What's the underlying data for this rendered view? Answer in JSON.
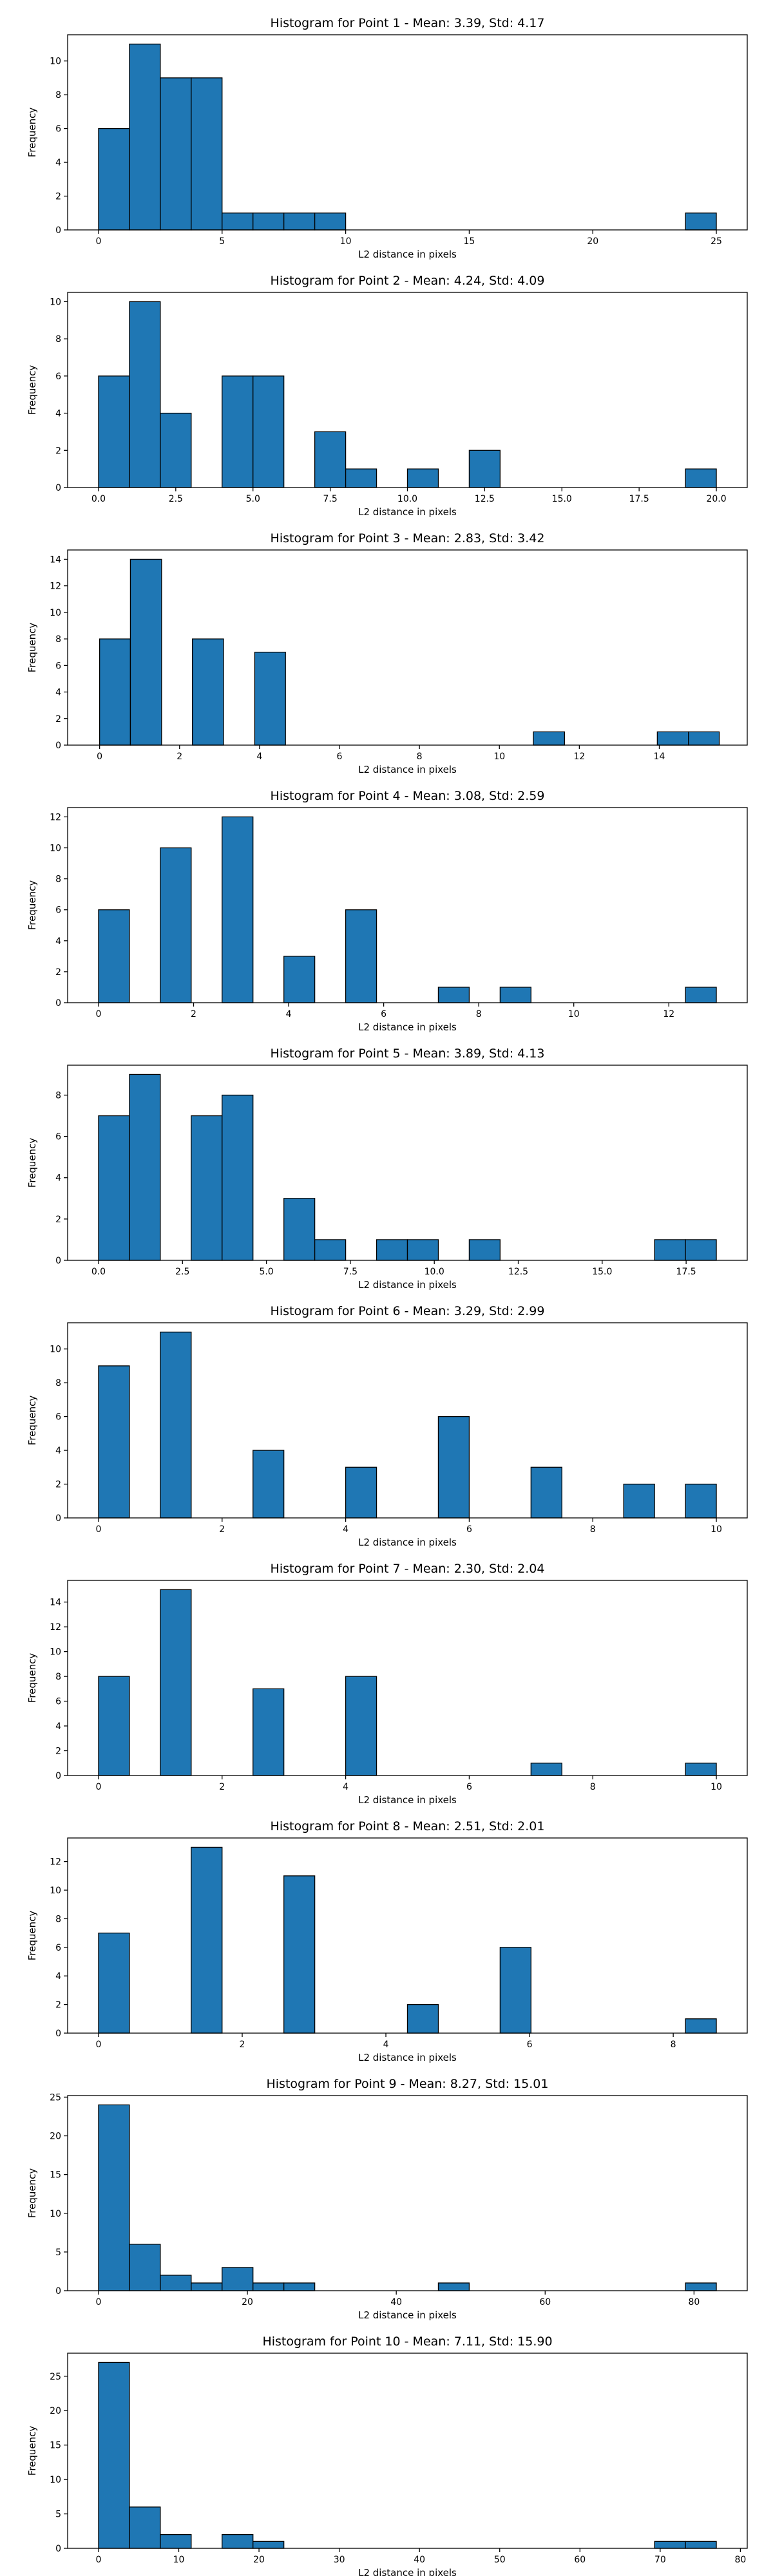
{
  "chart_data": [
    {
      "type": "bar",
      "title": "Histogram for Point 1 - Mean: 3.39, Std: 4.17",
      "xlabel": "L2 distance in pixels",
      "ylabel": "Frequency",
      "xlim": [
        -1.25,
        26.25
      ],
      "ylim": [
        0,
        11.55
      ],
      "xticks": [
        0,
        5,
        10,
        15,
        20,
        25
      ],
      "xtick_labels": [
        "0",
        "5",
        "10",
        "15",
        "20",
        "25"
      ],
      "yticks": [
        0,
        2,
        4,
        6,
        8,
        10
      ],
      "ytick_labels": [
        "0",
        "2",
        "4",
        "6",
        "8",
        "10"
      ],
      "grid": false,
      "bins": [
        {
          "x0": 0.0,
          "x1": 1.25,
          "value": 6
        },
        {
          "x0": 1.25,
          "x1": 2.5,
          "value": 11
        },
        {
          "x0": 2.5,
          "x1": 3.75,
          "value": 9
        },
        {
          "x0": 3.75,
          "x1": 5.0,
          "value": 9
        },
        {
          "x0": 5.0,
          "x1": 6.25,
          "value": 1
        },
        {
          "x0": 6.25,
          "x1": 7.5,
          "value": 1
        },
        {
          "x0": 7.5,
          "x1": 8.75,
          "value": 1
        },
        {
          "x0": 8.75,
          "x1": 10.0,
          "value": 1
        },
        {
          "x0": 23.75,
          "x1": 25.0,
          "value": 1
        }
      ]
    },
    {
      "type": "bar",
      "title": "Histogram for Point 2 - Mean: 4.24, Std: 4.09",
      "xlabel": "L2 distance in pixels",
      "ylabel": "Frequency",
      "xlim": [
        -1.0,
        21.0
      ],
      "ylim": [
        0,
        10.5
      ],
      "xticks": [
        0,
        2.5,
        5,
        7.5,
        10,
        12.5,
        15,
        17.5,
        20
      ],
      "xtick_labels": [
        "0.0",
        "2.5",
        "5.0",
        "7.5",
        "10.0",
        "12.5",
        "15.0",
        "17.5",
        "20.0"
      ],
      "yticks": [
        0,
        2,
        4,
        6,
        8,
        10
      ],
      "ytick_labels": [
        "0",
        "2",
        "4",
        "6",
        "8",
        "10"
      ],
      "grid": false,
      "bins": [
        {
          "x0": 0.0,
          "x1": 1.0,
          "value": 6
        },
        {
          "x0": 1.0,
          "x1": 2.0,
          "value": 10
        },
        {
          "x0": 2.0,
          "x1": 3.0,
          "value": 4
        },
        {
          "x0": 4.0,
          "x1": 5.0,
          "value": 6
        },
        {
          "x0": 5.0,
          "x1": 6.0,
          "value": 6
        },
        {
          "x0": 7.0,
          "x1": 8.0,
          "value": 3
        },
        {
          "x0": 8.0,
          "x1": 9.0,
          "value": 1
        },
        {
          "x0": 10.0,
          "x1": 11.0,
          "value": 1
        },
        {
          "x0": 12.0,
          "x1": 13.0,
          "value": 2
        },
        {
          "x0": 19.0,
          "x1": 20.0,
          "value": 1
        }
      ]
    },
    {
      "type": "bar",
      "title": "Histogram for Point 3 - Mean: 2.83, Std: 3.42",
      "xlabel": "L2 distance in pixels",
      "ylabel": "Frequency",
      "xlim": [
        -0.8,
        16.2
      ],
      "ylim": [
        0,
        14.7
      ],
      "xticks": [
        0,
        2,
        4,
        6,
        8,
        10,
        12,
        14
      ],
      "xtick_labels": [
        "0",
        "2",
        "4",
        "6",
        "8",
        "10",
        "12",
        "14"
      ],
      "yticks": [
        0,
        2,
        4,
        6,
        8,
        10,
        12,
        14
      ],
      "ytick_labels": [
        "0",
        "2",
        "4",
        "6",
        "8",
        "10",
        "12",
        "14"
      ],
      "grid": false,
      "bins": [
        {
          "x0": 0.0,
          "x1": 0.77,
          "value": 8
        },
        {
          "x0": 0.77,
          "x1": 1.55,
          "value": 14
        },
        {
          "x0": 2.32,
          "x1": 3.1,
          "value": 8
        },
        {
          "x0": 3.88,
          "x1": 4.65,
          "value": 7
        },
        {
          "x0": 10.85,
          "x1": 11.63,
          "value": 1
        },
        {
          "x0": 13.95,
          "x1": 14.73,
          "value": 1
        },
        {
          "x0": 14.73,
          "x1": 15.5,
          "value": 1
        }
      ]
    },
    {
      "type": "bar",
      "title": "Histogram for Point 4 - Mean: 3.08, Std: 2.59",
      "xlabel": "L2 distance in pixels",
      "ylabel": "Frequency",
      "xlim": [
        -0.65,
        13.65
      ],
      "ylim": [
        0,
        12.6
      ],
      "xticks": [
        0,
        2,
        4,
        6,
        8,
        10,
        12
      ],
      "xtick_labels": [
        "0",
        "2",
        "4",
        "6",
        "8",
        "10",
        "12"
      ],
      "yticks": [
        0,
        2,
        4,
        6,
        8,
        10,
        12
      ],
      "ytick_labels": [
        "0",
        "2",
        "4",
        "6",
        "8",
        "10",
        "12"
      ],
      "grid": false,
      "bins": [
        {
          "x0": 0.0,
          "x1": 0.65,
          "value": 6
        },
        {
          "x0": 1.3,
          "x1": 1.95,
          "value": 10
        },
        {
          "x0": 2.6,
          "x1": 3.25,
          "value": 12
        },
        {
          "x0": 3.9,
          "x1": 4.55,
          "value": 3
        },
        {
          "x0": 5.2,
          "x1": 5.85,
          "value": 6
        },
        {
          "x0": 7.15,
          "x1": 7.8,
          "value": 1
        },
        {
          "x0": 8.45,
          "x1": 9.1,
          "value": 1
        },
        {
          "x0": 12.35,
          "x1": 13.0,
          "value": 1
        }
      ]
    },
    {
      "type": "bar",
      "title": "Histogram for Point 5 - Mean: 3.89, Std: 4.13",
      "xlabel": "L2 distance in pixels",
      "ylabel": "Frequency",
      "xlim": [
        -0.92,
        19.32
      ],
      "ylim": [
        0,
        9.45
      ],
      "xticks": [
        0,
        2.5,
        5,
        7.5,
        10,
        12.5,
        15,
        17.5
      ],
      "xtick_labels": [
        "0.0",
        "2.5",
        "5.0",
        "7.5",
        "10.0",
        "12.5",
        "15.0",
        "17.5"
      ],
      "yticks": [
        0,
        2,
        4,
        6,
        8
      ],
      "ytick_labels": [
        "0",
        "2",
        "4",
        "6",
        "8"
      ],
      "grid": false,
      "bins": [
        {
          "x0": 0.0,
          "x1": 0.92,
          "value": 7
        },
        {
          "x0": 0.92,
          "x1": 1.84,
          "value": 9
        },
        {
          "x0": 2.76,
          "x1": 3.68,
          "value": 7
        },
        {
          "x0": 3.68,
          "x1": 4.6,
          "value": 8
        },
        {
          "x0": 5.52,
          "x1": 6.44,
          "value": 3
        },
        {
          "x0": 6.44,
          "x1": 7.36,
          "value": 1
        },
        {
          "x0": 8.28,
          "x1": 9.2,
          "value": 1
        },
        {
          "x0": 9.2,
          "x1": 10.12,
          "value": 1
        },
        {
          "x0": 11.04,
          "x1": 11.96,
          "value": 1
        },
        {
          "x0": 16.56,
          "x1": 17.48,
          "value": 1
        },
        {
          "x0": 17.48,
          "x1": 18.4,
          "value": 1
        }
      ]
    },
    {
      "type": "bar",
      "title": "Histogram for Point 6 - Mean: 3.29, Std: 2.99",
      "xlabel": "L2 distance in pixels",
      "ylabel": "Frequency",
      "xlim": [
        -0.5,
        10.5
      ],
      "ylim": [
        0,
        11.55
      ],
      "xticks": [
        0,
        2,
        4,
        6,
        8,
        10
      ],
      "xtick_labels": [
        "0",
        "2",
        "4",
        "6",
        "8",
        "10"
      ],
      "yticks": [
        0,
        2,
        4,
        6,
        8,
        10
      ],
      "ytick_labels": [
        "0",
        "2",
        "4",
        "6",
        "8",
        "10"
      ],
      "grid": false,
      "bins": [
        {
          "x0": 0.0,
          "x1": 0.5,
          "value": 9
        },
        {
          "x0": 1.0,
          "x1": 1.5,
          "value": 11
        },
        {
          "x0": 2.5,
          "x1": 3.0,
          "value": 4
        },
        {
          "x0": 4.0,
          "x1": 4.5,
          "value": 3
        },
        {
          "x0": 5.5,
          "x1": 6.0,
          "value": 6
        },
        {
          "x0": 7.0,
          "x1": 7.5,
          "value": 3
        },
        {
          "x0": 8.5,
          "x1": 9.0,
          "value": 2
        },
        {
          "x0": 9.5,
          "x1": 10.0,
          "value": 2
        }
      ]
    },
    {
      "type": "bar",
      "title": "Histogram for Point 7 - Mean: 2.30, Std: 2.04",
      "xlabel": "L2 distance in pixels",
      "ylabel": "Frequency",
      "xlim": [
        -0.5,
        10.5
      ],
      "ylim": [
        0,
        15.75
      ],
      "xticks": [
        0,
        2,
        4,
        6,
        8,
        10
      ],
      "xtick_labels": [
        "0",
        "2",
        "4",
        "6",
        "8",
        "10"
      ],
      "yticks": [
        0,
        2,
        4,
        6,
        8,
        10,
        12,
        14
      ],
      "ytick_labels": [
        "0",
        "2",
        "4",
        "6",
        "8",
        "10",
        "12",
        "14"
      ],
      "grid": false,
      "bins": [
        {
          "x0": 0.0,
          "x1": 0.5,
          "value": 8
        },
        {
          "x0": 1.0,
          "x1": 1.5,
          "value": 15
        },
        {
          "x0": 2.5,
          "x1": 3.0,
          "value": 7
        },
        {
          "x0": 4.0,
          "x1": 4.5,
          "value": 8
        },
        {
          "x0": 7.0,
          "x1": 7.5,
          "value": 1
        },
        {
          "x0": 9.5,
          "x1": 10.0,
          "value": 1
        }
      ]
    },
    {
      "type": "bar",
      "title": "Histogram for Point 8 - Mean: 2.51, Std: 2.01",
      "xlabel": "L2 distance in pixels",
      "ylabel": "Frequency",
      "xlim": [
        -0.43,
        9.03
      ],
      "ylim": [
        0,
        13.65
      ],
      "xticks": [
        0,
        2,
        4,
        6,
        8
      ],
      "xtick_labels": [
        "0",
        "2",
        "4",
        "6",
        "8"
      ],
      "yticks": [
        0,
        2,
        4,
        6,
        8,
        10,
        12
      ],
      "ytick_labels": [
        "0",
        "2",
        "4",
        "6",
        "8",
        "10",
        "12"
      ],
      "grid": false,
      "bins": [
        {
          "x0": 0.0,
          "x1": 0.43,
          "value": 7
        },
        {
          "x0": 1.29,
          "x1": 1.72,
          "value": 13
        },
        {
          "x0": 2.58,
          "x1": 3.01,
          "value": 11
        },
        {
          "x0": 4.3,
          "x1": 4.73,
          "value": 2
        },
        {
          "x0": 5.59,
          "x1": 6.02,
          "value": 6
        },
        {
          "x0": 8.17,
          "x1": 8.6,
          "value": 1
        }
      ]
    },
    {
      "type": "bar",
      "title": "Histogram for Point 9 - Mean: 8.27, Std: 15.01",
      "xlabel": "L2 distance in pixels",
      "ylabel": "Frequency",
      "xlim": [
        -4.15,
        87.15
      ],
      "ylim": [
        0,
        25.2
      ],
      "xticks": [
        0,
        20,
        40,
        60,
        80
      ],
      "xtick_labels": [
        "0",
        "20",
        "40",
        "60",
        "80"
      ],
      "yticks": [
        0,
        5,
        10,
        15,
        20,
        25
      ],
      "ytick_labels": [
        "0",
        "5",
        "10",
        "15",
        "20",
        "25"
      ],
      "grid": false,
      "bins": [
        {
          "x0": 0.0,
          "x1": 4.15,
          "value": 24
        },
        {
          "x0": 4.15,
          "x1": 8.3,
          "value": 6
        },
        {
          "x0": 8.3,
          "x1": 12.45,
          "value": 2
        },
        {
          "x0": 12.45,
          "x1": 16.6,
          "value": 1
        },
        {
          "x0": 16.6,
          "x1": 20.75,
          "value": 3
        },
        {
          "x0": 20.75,
          "x1": 24.9,
          "value": 1
        },
        {
          "x0": 24.9,
          "x1": 29.05,
          "value": 1
        },
        {
          "x0": 45.65,
          "x1": 49.8,
          "value": 1
        },
        {
          "x0": 78.85,
          "x1": 83.0,
          "value": 1
        }
      ]
    },
    {
      "type": "bar",
      "title": "Histogram for Point 10 - Mean: 7.11, Std: 15.90",
      "xlabel": "L2 distance in pixels",
      "ylabel": "Frequency",
      "xlim": [
        -3.85,
        80.85
      ],
      "ylim": [
        0,
        28.35
      ],
      "xticks": [
        0,
        10,
        20,
        30,
        40,
        50,
        60,
        70,
        80
      ],
      "xtick_labels": [
        "0",
        "10",
        "20",
        "30",
        "40",
        "50",
        "60",
        "70",
        "80"
      ],
      "yticks": [
        0,
        5,
        10,
        15,
        20,
        25
      ],
      "ytick_labels": [
        "0",
        "5",
        "10",
        "15",
        "20",
        "25"
      ],
      "grid": false,
      "bins": [
        {
          "x0": 0.0,
          "x1": 3.85,
          "value": 27
        },
        {
          "x0": 3.85,
          "x1": 7.7,
          "value": 6
        },
        {
          "x0": 7.7,
          "x1": 11.55,
          "value": 2
        },
        {
          "x0": 15.4,
          "x1": 19.25,
          "value": 2
        },
        {
          "x0": 19.25,
          "x1": 23.1,
          "value": 1
        },
        {
          "x0": 69.3,
          "x1": 73.15,
          "value": 1
        },
        {
          "x0": 73.15,
          "x1": 77.0,
          "value": 1
        }
      ]
    }
  ],
  "colors": {
    "bar_fill": "#1f77b4",
    "bar_edge": "#000000",
    "background": "#ffffff"
  }
}
